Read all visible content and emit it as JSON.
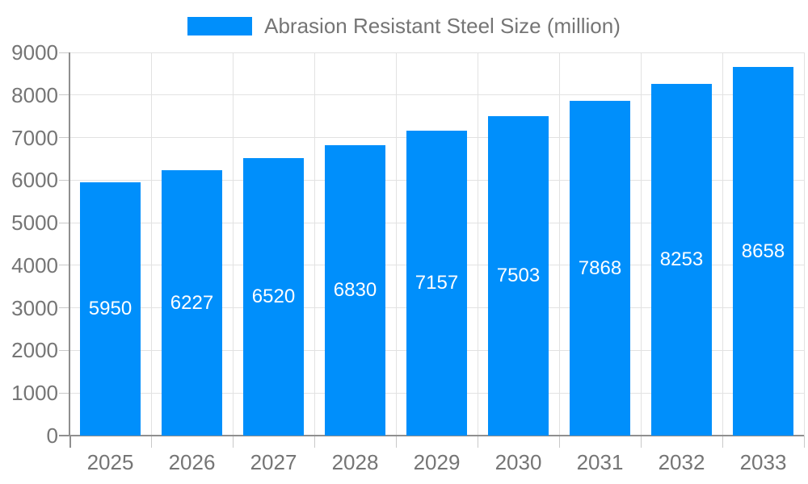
{
  "chart_data": {
    "type": "bar",
    "title": "Abrasion Resistant Steel Size (million)",
    "legend": {
      "label": "Abrasion Resistant Steel Size (million)",
      "position": "top"
    },
    "categories": [
      "2025",
      "2026",
      "2027",
      "2028",
      "2029",
      "2030",
      "2031",
      "2032",
      "2033"
    ],
    "values": [
      5950,
      6227,
      6520,
      6830,
      7157,
      7503,
      7868,
      8253,
      8658
    ],
    "value_labels_shown": true,
    "xlabel": "",
    "ylabel": "",
    "ylim": [
      0,
      9000
    ],
    "y_ticks": [
      0,
      1000,
      2000,
      3000,
      4000,
      5000,
      6000,
      7000,
      8000,
      9000
    ],
    "grid": true,
    "colors": {
      "bar": "#008FFB",
      "value_label": "#ffffff",
      "axis_text": "#757575",
      "legend_text": "#757575",
      "gridline": "#e2e2e2",
      "tick": "#c9c9c9",
      "axis_line": "#8f8f8f",
      "background": "#ffffff"
    }
  }
}
